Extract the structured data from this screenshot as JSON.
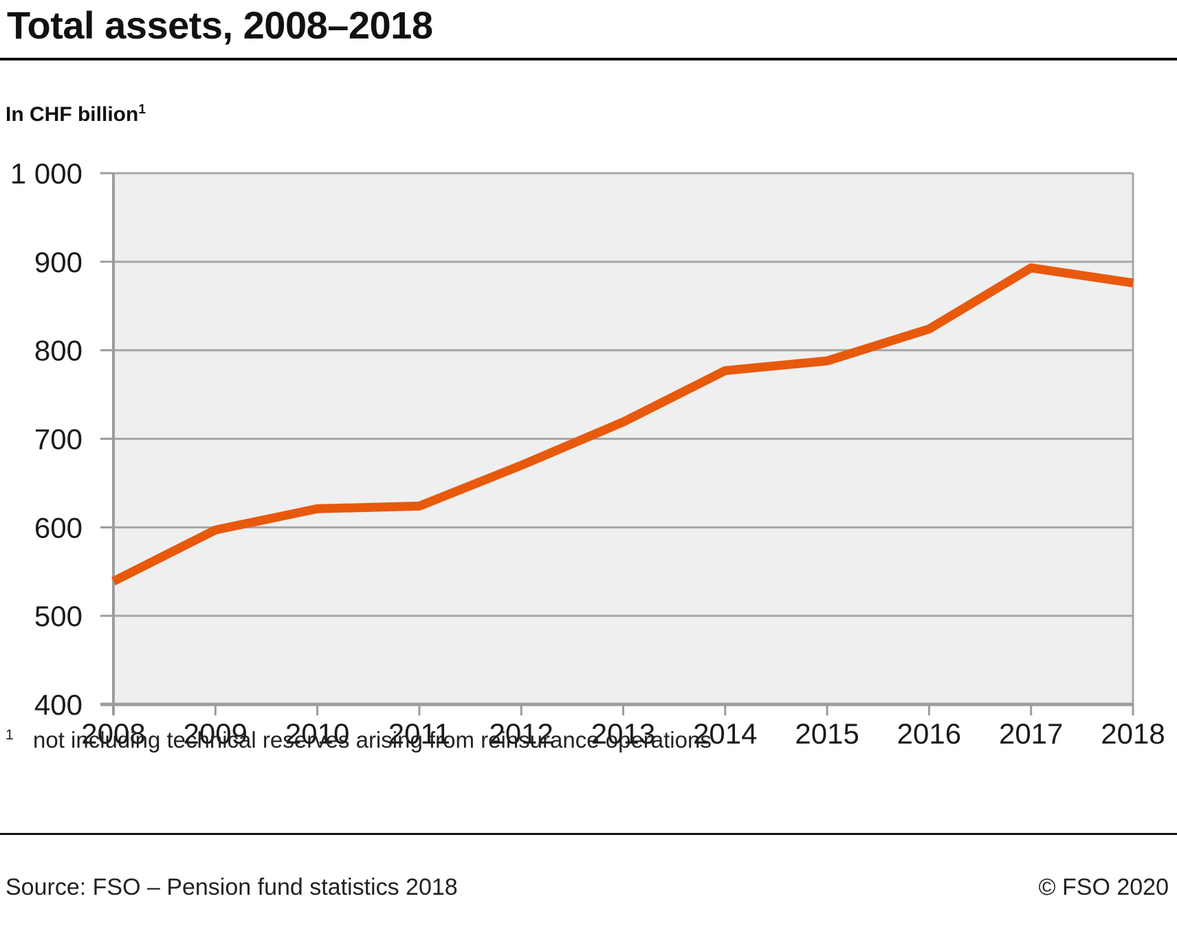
{
  "page": {
    "title": "Total assets, 2008–2018",
    "subtitle": "In CHF billion",
    "subtitle_superscript": "1",
    "footnote_marker": "1",
    "footnote_text": "not including technical reserves arising from reinsurance operations",
    "footer_source": "Source: FSO – Pension fund statistics 2018",
    "footer_copyright": "© FSO 2020"
  },
  "chart_data": {
    "type": "line",
    "title": "Total assets, 2008–2018",
    "ylabel": "In CHF billion",
    "xlabel": "",
    "x": [
      2008,
      2009,
      2010,
      2011,
      2012,
      2013,
      2014,
      2015,
      2016,
      2017,
      2018
    ],
    "series": [
      {
        "name": "Total assets (CHF billion)",
        "values": [
          539,
          597,
          621,
          624,
          670,
          719,
          777,
          788,
          824,
          893,
          876
        ]
      }
    ],
    "ylim": [
      400,
      1000
    ],
    "yticks": [
      400,
      500,
      600,
      700,
      800,
      900,
      1000
    ],
    "ytick_labels": [
      "400",
      "500",
      "600",
      "700",
      "800",
      "900",
      "1 000"
    ],
    "grid": "horizontal",
    "legend": "none",
    "colors": {
      "line": "#e8590c",
      "plot_background": "#efefef",
      "grid": "#a6a6a6",
      "axis": "#9c9c9c",
      "text": "#1a1a1a"
    }
  }
}
